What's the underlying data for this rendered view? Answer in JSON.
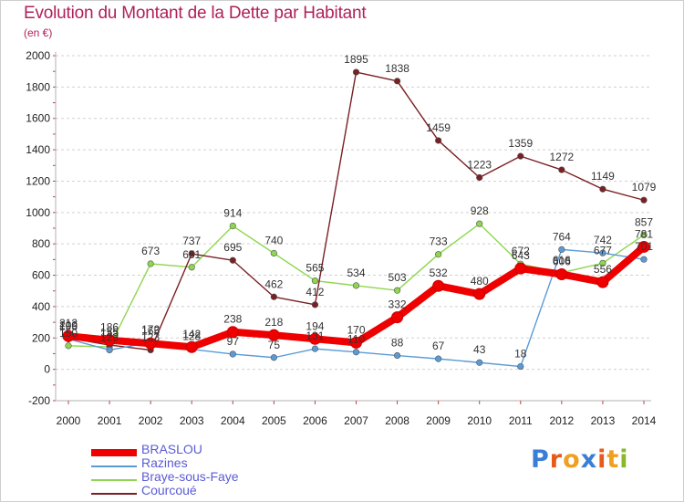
{
  "header": {
    "title": "Evolution du Montant de la Dette par Habitant",
    "subtitle": "(en €)"
  },
  "logo": {
    "text": "Proxiti",
    "letters": [
      {
        "ch": "P",
        "color": "#3a7fd5"
      },
      {
        "ch": "r",
        "color": "#e85a1a"
      },
      {
        "ch": "o",
        "color": "#f0a020"
      },
      {
        "ch": "x",
        "color": "#3a7fd5"
      },
      {
        "ch": "i",
        "color": "#e85a1a"
      },
      {
        "ch": "t",
        "color": "#f0a020"
      },
      {
        "ch": "i",
        "color": "#8ab82a"
      }
    ]
  },
  "chart_data": {
    "type": "line",
    "title": "Evolution du Montant de la Dette par Habitant",
    "subtitle": "(en €)",
    "x": [
      "2000",
      "2001",
      "2002",
      "2003",
      "2004",
      "2005",
      "2006",
      "2007",
      "2008",
      "2009",
      "2010",
      "2011",
      "2012",
      "2013",
      "2014"
    ],
    "ylim": [
      -200,
      2000
    ],
    "yticks": [
      -200,
      0,
      200,
      400,
      600,
      800,
      1000,
      1200,
      1400,
      1600,
      1800,
      2000
    ],
    "grid": "horizontal dashed",
    "legend_position": "bottom-left",
    "series": [
      {
        "name": "BRASLOU",
        "color": "#ee0000",
        "values": [
          212,
          186,
          165,
          142,
          238,
          218,
          194,
          170,
          332,
          532,
          480,
          643,
          606,
          556,
          781
        ]
      },
      {
        "name": "Razines",
        "color": "#5a9bd5",
        "values": [
          193,
          123,
          172,
          128,
          97,
          75,
          131,
          110,
          88,
          67,
          43,
          18,
          764,
          742,
          701
        ]
      },
      {
        "name": "Braye-sous-Faye",
        "color": "#8fd650",
        "values": [
          150,
          143,
          673,
          651,
          914,
          740,
          565,
          534,
          503,
          733,
          928,
          672,
          616,
          677,
          857
        ]
      },
      {
        "name": "Courcoué",
        "color": "#7a1f22",
        "values": [
          200,
          155,
          123,
          737,
          695,
          462,
          412,
          1895,
          1838,
          1459,
          1223,
          1359,
          1272,
          1149,
          1079
        ]
      }
    ]
  }
}
